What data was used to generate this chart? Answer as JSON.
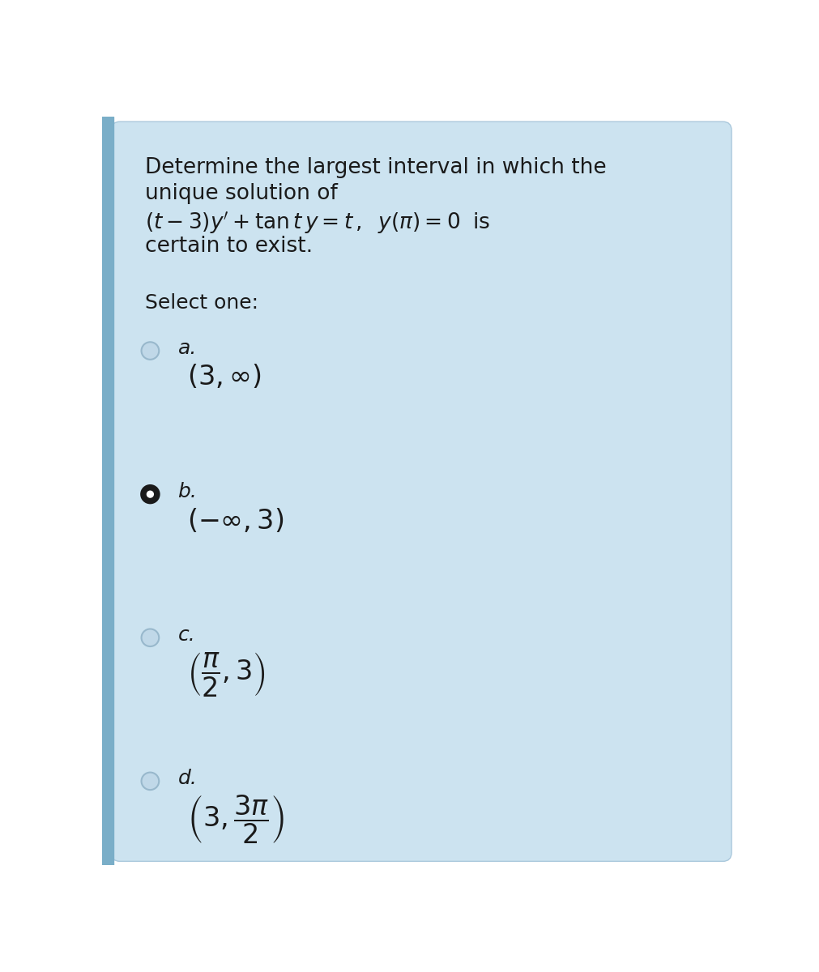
{
  "bg_outer": "#ffffff",
  "bg_card": "#cce3f0",
  "card_border": "#aac8dc",
  "left_bar_color": "#7aaec8",
  "text_color": "#1a1a1a",
  "question_line1": "Determine the largest interval in which the",
  "question_line2": "unique solution of",
  "question_line4": "certain to exist.",
  "select_text": "Select one:",
  "options": [
    {
      "label": "a.",
      "selected": false
    },
    {
      "label": "b.",
      "selected": true
    },
    {
      "label": "c.",
      "selected": false
    },
    {
      "label": "d.",
      "selected": false
    }
  ],
  "radio_unsel_face": "#c0d8e8",
  "radio_unsel_edge": "#98b8cc",
  "radio_sel_outer_face": "#1a1a1a",
  "radio_sel_outer_edge": "#1a1a1a",
  "radio_sel_inner": "#ffffff",
  "font_size_question": 19,
  "font_size_select": 18,
  "font_size_label": 18,
  "font_size_option": 24
}
